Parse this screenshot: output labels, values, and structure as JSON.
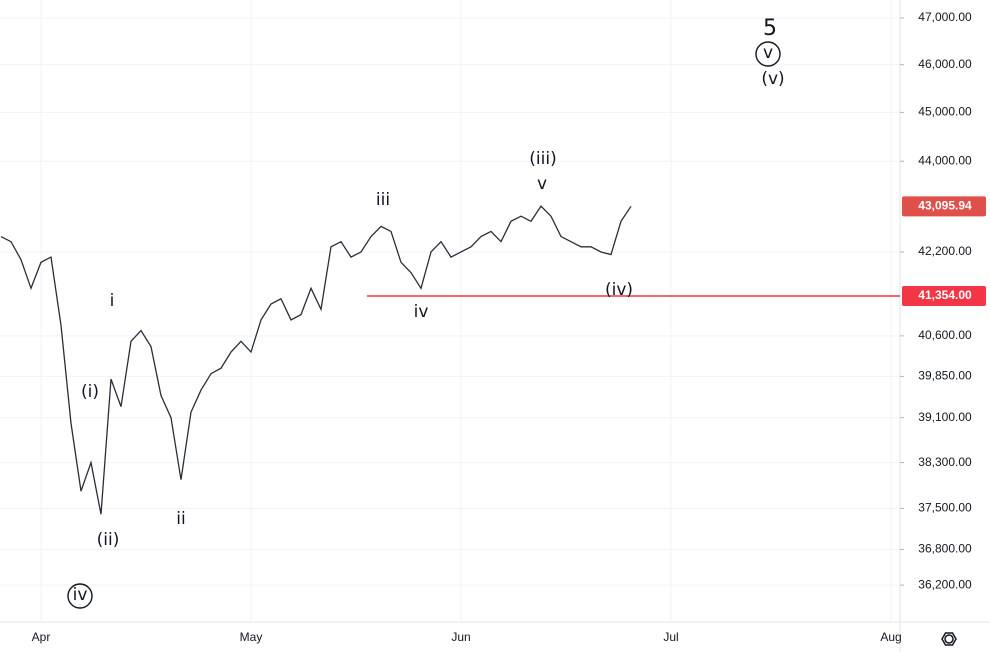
{
  "chart_data": {
    "type": "line",
    "log_scale": true,
    "grid": true,
    "color": "#2a2e39",
    "categories": [
      null,
      null,
      null,
      null,
      "Apr",
      null,
      null,
      null,
      null,
      null,
      null,
      null,
      null,
      null,
      null,
      null,
      null,
      null,
      null,
      null,
      null,
      null,
      null,
      null,
      null,
      "May",
      null,
      null,
      null,
      null,
      null,
      null,
      null,
      null,
      null,
      null,
      null,
      null,
      null,
      null,
      null,
      null,
      null,
      null,
      null,
      null,
      "Jun",
      null,
      null,
      null,
      null,
      null,
      null,
      null,
      null,
      null,
      null,
      null,
      null,
      null,
      null,
      null,
      null,
      null,
      null,
      null,
      null,
      "Jul",
      null,
      null,
      null,
      null,
      null,
      null,
      null,
      null,
      null,
      null,
      null,
      null,
      null,
      null,
      null,
      null,
      null,
      null,
      null,
      null,
      null,
      "Aug"
    ],
    "values": [
      42500,
      42400,
      42050,
      41500,
      42000,
      42100,
      40800,
      39000,
      37800,
      38300,
      37400,
      39800,
      39300,
      40500,
      40700,
      40400,
      39500,
      39100,
      38000,
      39200,
      39600,
      39900,
      40000,
      40300,
      40500,
      40300,
      40900,
      41200,
      41300,
      40900,
      41000,
      41500,
      41100,
      42300,
      42400,
      42100,
      42200,
      42500,
      42700,
      42600,
      42000,
      41800,
      41500,
      42200,
      42400,
      42100,
      42200,
      42300,
      42500,
      42600,
      42400,
      42800,
      42900,
      42800,
      43100,
      42900,
      42500,
      42400,
      42300,
      42300,
      42200,
      42150,
      42800,
      43095.94,
      null,
      null,
      null,
      null,
      null,
      null,
      null,
      null,
      null,
      null,
      null,
      null,
      null,
      null,
      null,
      null,
      null,
      null,
      null,
      null,
      null,
      null,
      null,
      null,
      null,
      null
    ],
    "ylim": [
      35590,
      47390
    ],
    "yticks": [
      {
        "value": 36200,
        "label": "36,200.00"
      },
      {
        "value": 36800,
        "label": "36,800.00"
      },
      {
        "value": 37500,
        "label": "37,500.00"
      },
      {
        "value": 38300,
        "label": "38,300.00"
      },
      {
        "value": 39100,
        "label": "39,100.00"
      },
      {
        "value": 39850,
        "label": "39,850.00"
      },
      {
        "value": 40600,
        "label": "40,600.00"
      },
      {
        "value": 42200,
        "label": "42,200.00"
      },
      {
        "value": 44000,
        "label": "44,000.00"
      },
      {
        "value": 45000,
        "label": "45,000.00"
      },
      {
        "value": 46000,
        "label": "46,000.00"
      },
      {
        "value": 47000,
        "label": "47,000.00"
      }
    ],
    "hline": {
      "value": 41354,
      "label": "41,354.00",
      "color": "#f23645"
    },
    "last_price": {
      "value": 43095.94,
      "label": "43,095.94",
      "color": "#e0504a"
    },
    "annotations": [
      {
        "text": "5"
      },
      {
        "text": "v",
        "circled": true
      },
      {
        "text": "(v)"
      },
      {
        "text": "(iii)"
      },
      {
        "text": "v"
      },
      {
        "text": "iii"
      },
      {
        "text": "i"
      },
      {
        "text": "(i)"
      },
      {
        "text": "(ii)"
      },
      {
        "text": "iv",
        "circled": true
      },
      {
        "text": "ii"
      },
      {
        "text": "iv"
      },
      {
        "text": "(iv)"
      }
    ]
  }
}
